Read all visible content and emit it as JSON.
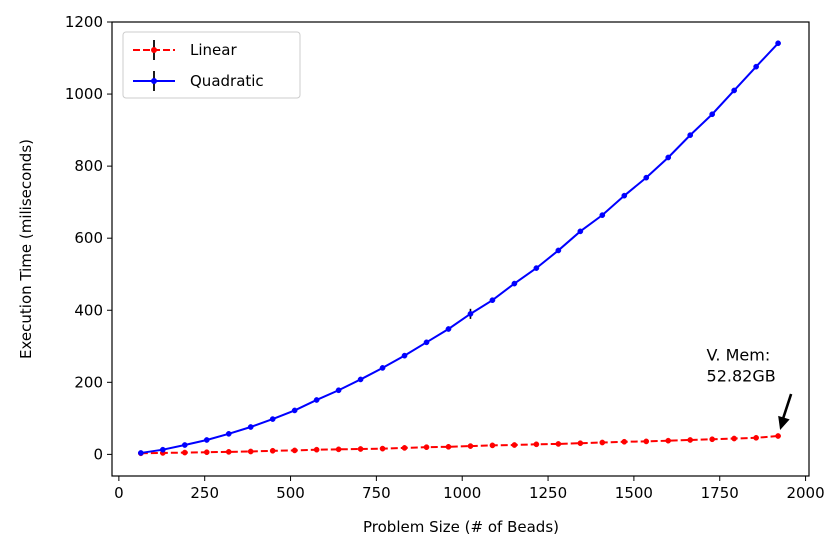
{
  "chart_data": {
    "type": "line",
    "title": "",
    "xlabel": "Problem Size (# of Beads)",
    "ylabel": "Execution Time (miliseconds)",
    "xlim": [
      -20,
      2010
    ],
    "ylim": [
      -60,
      1200
    ],
    "xticks": [
      0,
      250,
      500,
      750,
      1000,
      1250,
      1500,
      1750,
      2000
    ],
    "yticks": [
      0,
      200,
      400,
      600,
      800,
      1000,
      1200
    ],
    "legend_position": "top-left",
    "x": [
      64,
      128,
      192,
      256,
      320,
      384,
      448,
      512,
      576,
      640,
      704,
      768,
      832,
      896,
      960,
      1024,
      1088,
      1152,
      1216,
      1280,
      1344,
      1408,
      1472,
      1536,
      1600,
      1664,
      1728,
      1792,
      1856,
      1920
    ],
    "series": [
      {
        "name": "Linear",
        "color": "#ff0000",
        "linestyle": "dashed",
        "values": [
          3,
          4,
          5,
          6,
          7,
          8,
          10,
          11,
          13,
          14,
          15,
          16,
          18,
          20,
          21,
          23,
          25,
          26,
          28,
          29,
          31,
          33,
          35,
          36,
          38,
          40,
          42,
          44,
          46,
          51
        ],
        "errors": [
          0,
          0,
          0,
          0,
          0,
          0,
          0,
          0,
          0,
          0,
          0,
          0,
          0,
          0,
          0,
          0,
          0,
          0,
          0,
          0,
          0,
          0,
          0,
          0,
          0,
          0,
          0,
          0,
          0,
          0
        ]
      },
      {
        "name": "Quadratic",
        "color": "#0000ff",
        "linestyle": "solid",
        "values": [
          4,
          13,
          26,
          40,
          57,
          76,
          98,
          122,
          151,
          178,
          208,
          240,
          274,
          311,
          348,
          390,
          428,
          474,
          517,
          566,
          619,
          664,
          718,
          768,
          824,
          886,
          944,
          1010,
          1076,
          1141
        ],
        "errors": [
          0,
          0,
          0,
          0,
          0,
          0,
          0,
          0,
          0,
          0,
          0,
          0,
          0,
          0,
          0,
          14,
          0,
          0,
          0,
          0,
          0,
          0,
          0,
          0,
          0,
          0,
          0,
          0,
          0,
          0
        ]
      }
    ],
    "annotation": {
      "lines": [
        "V. Mem:",
        "52.82GB"
      ],
      "point": [
        1920,
        51
      ],
      "text_anchor": [
        1700,
        205
      ]
    }
  }
}
